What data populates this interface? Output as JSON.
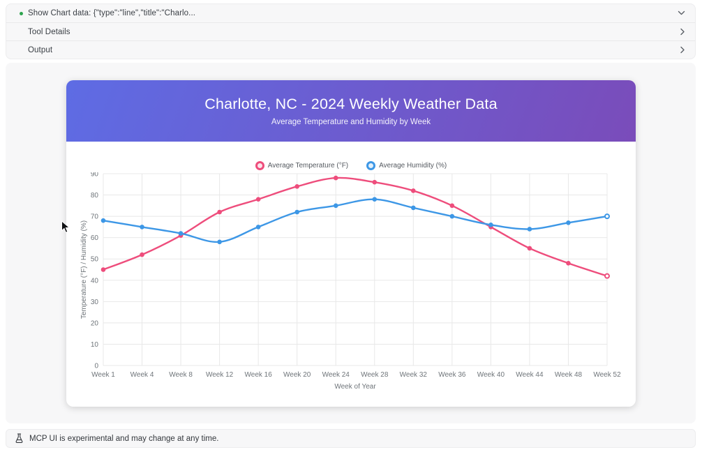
{
  "accordion": {
    "rows": [
      {
        "label": "Show Chart data: {\"type\":\"line\",\"title\":\"Charlo...",
        "state": "expanded",
        "icon": "chevron-down",
        "bullet_color": "#2da44e"
      },
      {
        "label": "Tool Details",
        "state": "collapsed",
        "icon": "chevron-right"
      },
      {
        "label": "Output",
        "state": "collapsed",
        "icon": "chevron-right"
      }
    ]
  },
  "chart_data": {
    "type": "line",
    "title": "Charlotte, NC - 2024 Weekly Weather Data",
    "subtitle": "Average Temperature and Humidity by Week",
    "xlabel": "Week of Year",
    "ylabel": "Temperature (°F) / Humidity (%)",
    "ylim": [
      0,
      90
    ],
    "ytick_step": 10,
    "grid": true,
    "legend_position": "top",
    "categories": [
      "Week 1",
      "Week 4",
      "Week 8",
      "Week 12",
      "Week 16",
      "Week 20",
      "Week 24",
      "Week 28",
      "Week 32",
      "Week 36",
      "Week 40",
      "Week 44",
      "Week 48",
      "Week 52"
    ],
    "series": [
      {
        "name": "Average Temperature (°F)",
        "color": "#ee4d7c",
        "values": [
          45,
          52,
          61,
          72,
          78,
          84,
          88,
          86,
          82,
          75,
          65,
          55,
          48,
          42
        ]
      },
      {
        "name": "Average Humidity (%)",
        "color": "#3d97e6",
        "values": [
          68,
          65,
          62,
          58,
          65,
          72,
          75,
          78,
          74,
          70,
          66,
          64,
          67,
          70
        ]
      }
    ]
  },
  "footer": {
    "label": "MCP UI is experimental and may change at any time.",
    "icon": "flask"
  },
  "colors": {
    "header_gradient_start": "#5e6ce4",
    "header_gradient_end": "#7a4cba",
    "grid_line": "#e8e8e8",
    "axis_text": "#6e7479",
    "panel_bg": "#f7f7f8",
    "status_dot": "#2da44e"
  }
}
